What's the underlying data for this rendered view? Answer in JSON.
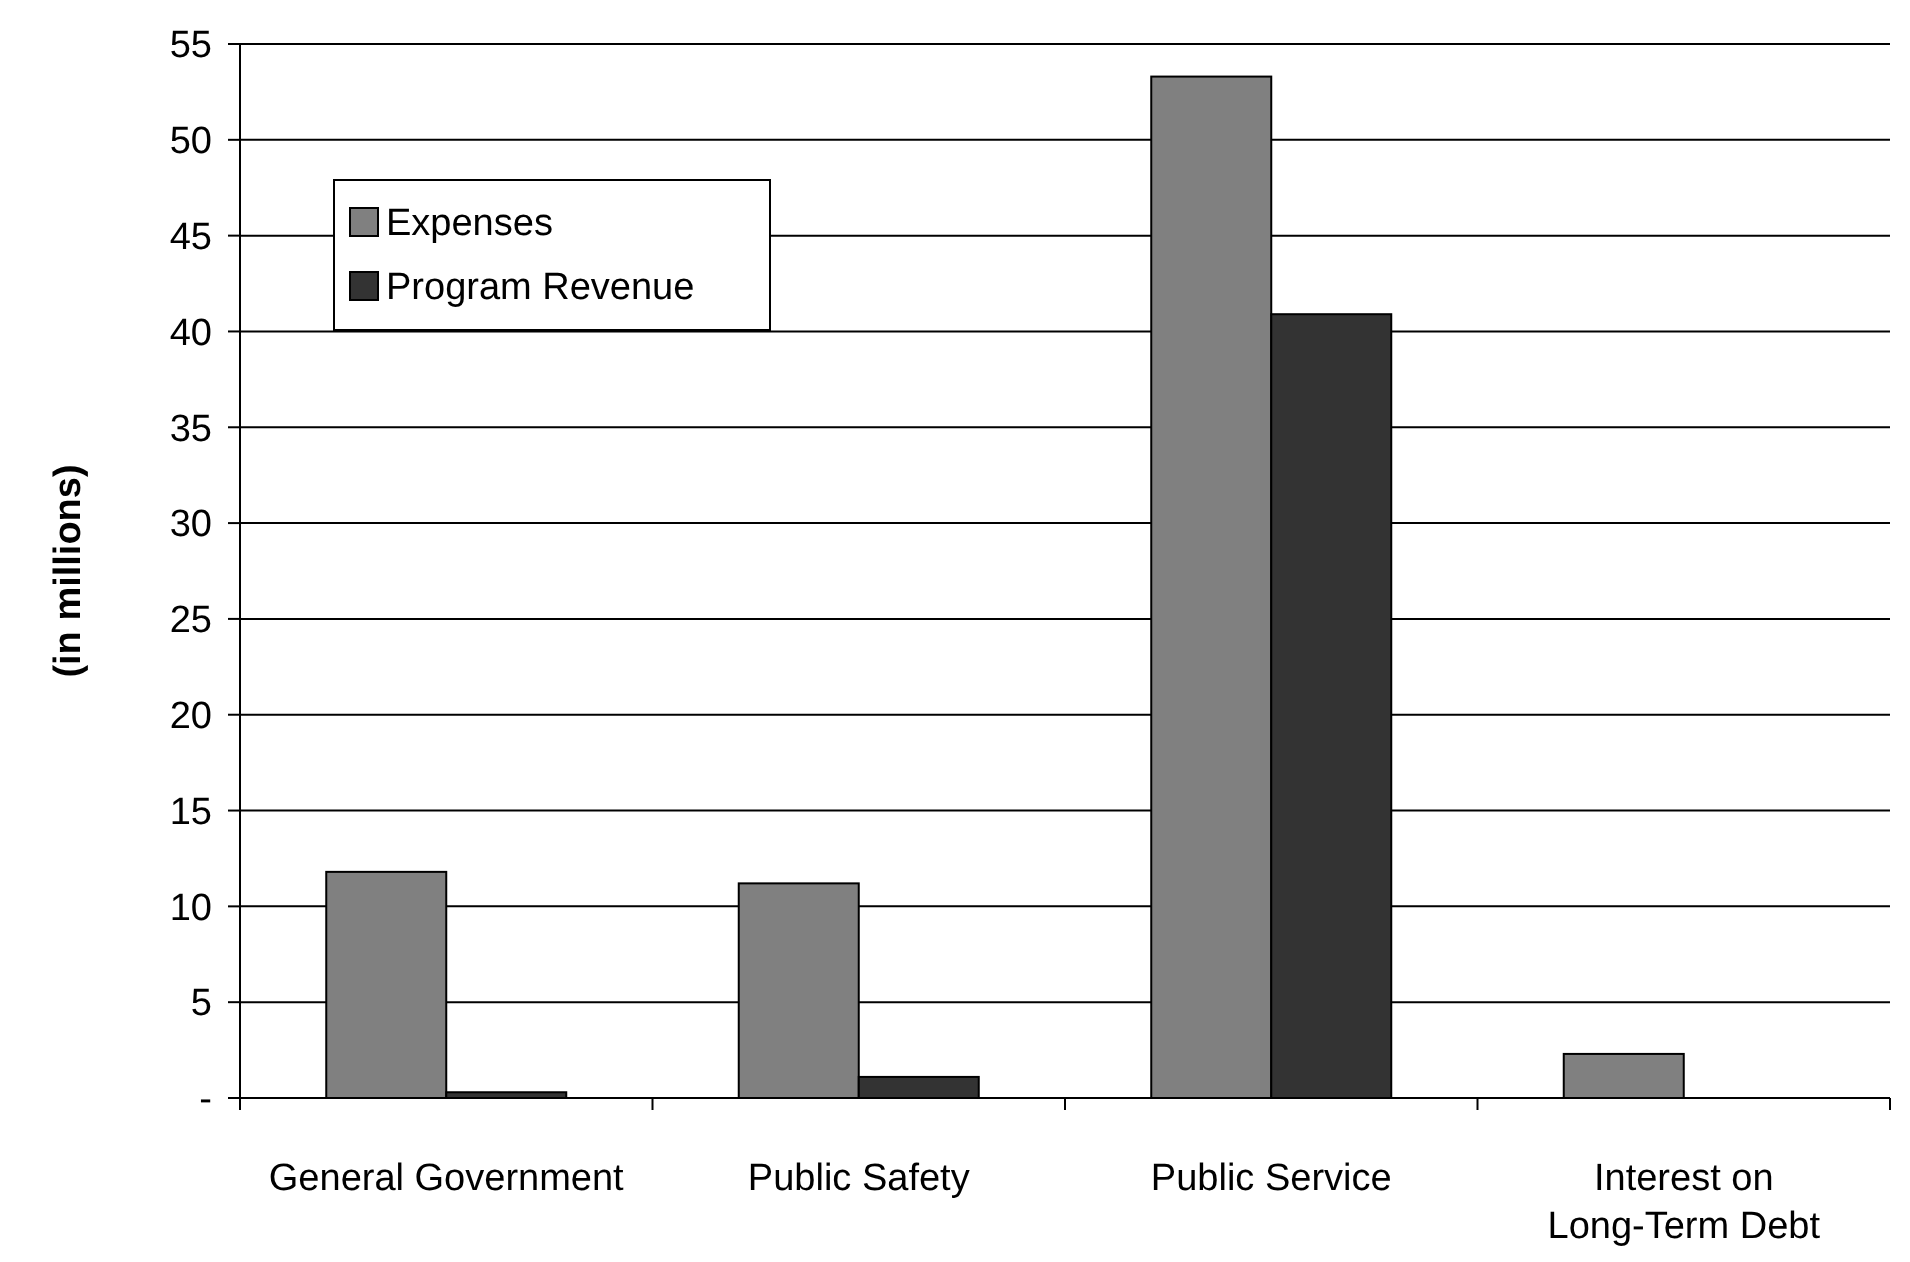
{
  "chart_data": {
    "type": "bar",
    "ylabel": "(in millions)",
    "categories": [
      "General Government",
      "Public Safety",
      "Public Service",
      "Interest on Long-Term Debt"
    ],
    "series": [
      {
        "name": "Expenses",
        "color": "#808080",
        "values": [
          11.8,
          11.2,
          53.3,
          2.3
        ]
      },
      {
        "name": "Program Revenue",
        "color": "#333333",
        "values": [
          0.3,
          1.1,
          40.9,
          null
        ]
      }
    ],
    "ylim": [
      0,
      55
    ],
    "yticks": [
      {
        "value": 0,
        "label": "-"
      },
      5,
      10,
      15,
      20,
      25,
      30,
      35,
      40,
      45,
      50,
      55
    ],
    "grid": "y",
    "legend": "top left"
  }
}
